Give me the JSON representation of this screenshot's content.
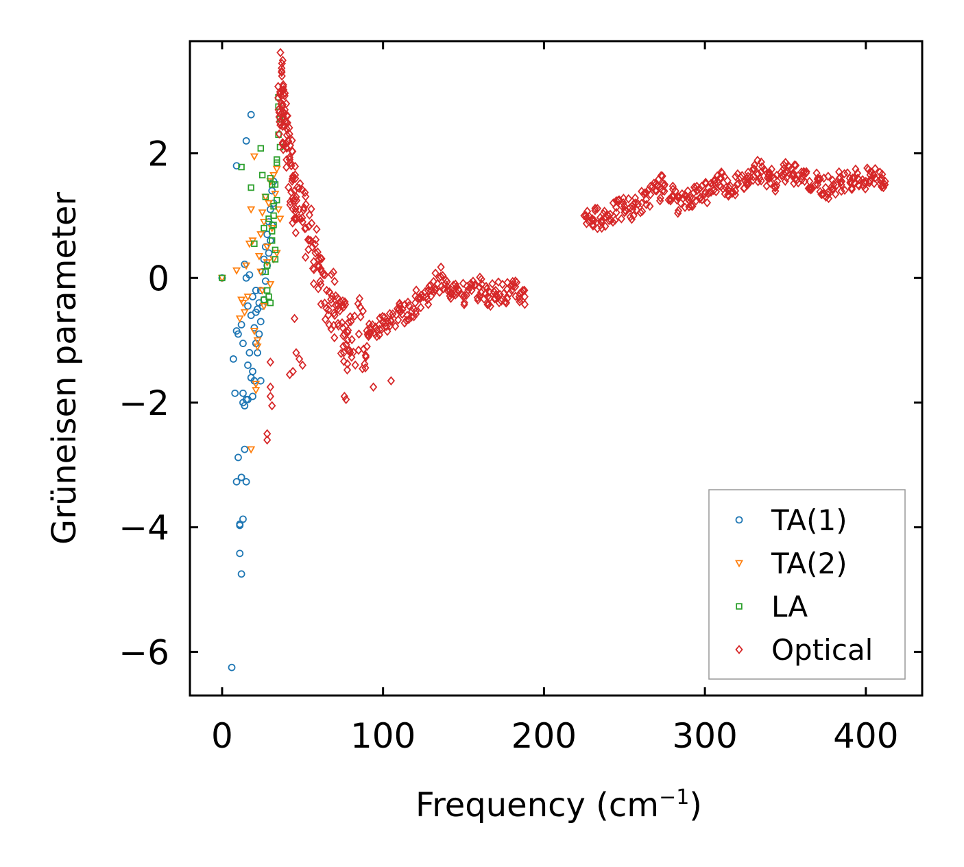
{
  "chart_data": {
    "type": "scatter",
    "title": "",
    "xlabel": "Frequency (cm",
    "xlabel_sup": "−1",
    "xlabel_tail": ")",
    "ylabel": "Grüneisen parameter",
    "xlim": [
      -20,
      435
    ],
    "ylim": [
      -6.7,
      3.8
    ],
    "xticks": [
      0,
      100,
      200,
      300,
      400
    ],
    "xtick_labels": [
      "0",
      "100",
      "200",
      "300",
      "400"
    ],
    "yticks": [
      -6,
      -4,
      -2,
      0,
      2
    ],
    "ytick_labels": [
      "−6",
      "−4",
      "−2",
      "0",
      "2"
    ],
    "grid": false,
    "legend_position": "lower-right",
    "series": [
      {
        "name": "TA(1)",
        "marker": "circle",
        "color": "#1f77b4",
        "x": [
          0,
          6,
          7,
          8,
          9,
          10,
          11,
          11,
          12,
          12,
          13,
          13,
          14,
          14,
          15,
          15,
          16,
          16,
          17,
          17,
          18,
          18,
          19,
          19,
          20,
          20,
          21,
          21,
          22,
          22,
          23,
          23,
          24,
          24,
          25,
          25,
          26,
          26,
          27,
          27,
          28,
          28,
          29,
          29,
          30,
          30,
          31,
          31,
          32,
          32,
          18,
          15,
          9,
          12,
          13,
          10,
          11,
          14,
          15,
          9,
          12,
          13,
          16,
          19,
          21,
          24
        ],
        "y": [
          0,
          -6.25,
          -1.3,
          -1.85,
          -0.85,
          -2.88,
          -3.97,
          -4.42,
          -4.75,
          -3.2,
          -3.87,
          -1.05,
          -2.05,
          0.22,
          -1.95,
          0.0,
          -1.4,
          -0.45,
          -1.2,
          0.05,
          -1.6,
          -0.6,
          -1.9,
          -0.3,
          -1.65,
          -0.8,
          -1.05,
          -0.2,
          -1.2,
          -0.5,
          -0.4,
          -0.9,
          -0.7,
          -0.2,
          -0.45,
          0.1,
          -0.35,
          0.3,
          -0.05,
          0.5,
          0.2,
          0.7,
          0.4,
          0.9,
          0.6,
          1.1,
          0.85,
          1.4,
          1.2,
          1.55,
          2.62,
          2.2,
          1.8,
          -0.75,
          -1.85,
          -0.9,
          -3.95,
          -2.75,
          -3.27,
          -3.27,
          -3.2,
          -2.0,
          -1.95,
          -1.5,
          -0.55,
          -1.65
        ]
      },
      {
        "name": "TA(2)",
        "marker": "triangle-down",
        "color": "#ff7f0e",
        "x": [
          0,
          9,
          11,
          12,
          13,
          14,
          15,
          16,
          17,
          18,
          19,
          20,
          21,
          22,
          23,
          24,
          25,
          26,
          27,
          28,
          29,
          30,
          31,
          32,
          33,
          34,
          35,
          36,
          20,
          22,
          18,
          24,
          26,
          28,
          30,
          32,
          34,
          21,
          25
        ],
        "y": [
          0,
          0.12,
          -0.65,
          -0.35,
          -0.4,
          -0.55,
          0.2,
          -0.3,
          0.55,
          1.1,
          0.6,
          -0.85,
          -1.7,
          -1.1,
          0.35,
          0.7,
          -0.2,
          0.9,
          1.3,
          0.5,
          1.2,
          1.55,
          0.8,
          1.65,
          1.35,
          1.75,
          1.1,
          0.95,
          1.95,
          -1.0,
          -2.75,
          0.1,
          -0.45,
          0.25,
          -0.1,
          0.3,
          0.4,
          -1.8,
          1.05
        ]
      },
      {
        "name": "LA",
        "marker": "square",
        "color": "#2ca02c",
        "x": [
          0,
          12,
          18,
          20,
          24,
          25,
          26,
          27,
          28,
          29,
          30,
          31,
          32,
          33,
          34,
          35,
          36,
          36,
          35,
          34,
          33,
          32,
          31,
          30,
          29,
          28,
          27,
          26,
          35,
          34,
          33,
          32,
          31
        ],
        "y": [
          0,
          1.78,
          1.45,
          0.55,
          2.08,
          1.65,
          0.8,
          1.3,
          0.2,
          0.95,
          1.6,
          0.6,
          1.15,
          0.45,
          1.9,
          2.9,
          2.1,
          2.55,
          2.3,
          1.85,
          1.5,
          1.0,
          0.75,
          -0.4,
          -0.3,
          -0.2,
          0.1,
          -0.35,
          2.75,
          1.25,
          0.3,
          0.85,
          1.5
        ]
      },
      {
        "name": "Optical",
        "marker": "diamond",
        "color": "#d62728",
        "x": [
          37,
          38,
          36,
          39,
          40,
          35,
          41,
          42,
          43,
          44,
          45,
          46,
          48,
          50,
          52,
          55,
          58,
          60,
          62,
          65,
          68,
          70,
          72,
          75,
          76,
          78,
          80,
          85,
          90,
          92,
          95,
          100,
          105,
          110,
          115,
          120,
          125,
          130,
          135,
          140,
          145,
          150,
          155,
          160,
          165,
          170,
          175,
          180,
          185,
          188,
          225,
          230,
          235,
          240,
          245,
          250,
          255,
          270,
          275,
          280,
          285,
          290,
          295,
          300,
          305,
          310,
          315,
          320,
          325,
          330,
          335,
          340,
          345,
          350,
          355,
          360,
          365,
          370,
          375,
          380,
          385,
          390,
          395,
          400,
          405,
          410,
          412,
          30,
          30,
          31,
          28,
          28,
          30,
          42,
          44,
          45,
          46,
          48,
          50,
          76,
          77,
          94,
          105
        ],
        "y": [
          3.3,
          3.1,
          2.95,
          2.7,
          2.4,
          2.7,
          2.2,
          1.9,
          1.8,
          1.6,
          1.4,
          1.3,
          1.1,
          0.9,
          0.8,
          0.6,
          0.4,
          0.3,
          0.1,
          -0.2,
          -0.4,
          -0.6,
          -0.5,
          -0.8,
          -0.9,
          -1.0,
          -0.7,
          -0.9,
          -1.1,
          -0.8,
          -0.9,
          -0.7,
          -0.7,
          -0.5,
          -0.6,
          -0.4,
          -0.3,
          -0.2,
          0.0,
          -0.2,
          -0.1,
          -0.3,
          -0.2,
          -0.15,
          -0.3,
          -0.2,
          -0.25,
          -0.2,
          -0.25,
          -0.3,
          1.0,
          0.95,
          0.97,
          1.0,
          1.05,
          1.15,
          1.1,
          1.4,
          1.5,
          1.3,
          1.2,
          1.25,
          1.4,
          1.35,
          1.5,
          1.6,
          1.45,
          1.5,
          1.55,
          1.75,
          1.7,
          1.6,
          1.55,
          1.7,
          1.65,
          1.7,
          1.55,
          1.5,
          1.45,
          1.5,
          1.55,
          1.6,
          1.6,
          1.55,
          1.65,
          1.6,
          1.55,
          -1.35,
          -1.9,
          -2.05,
          -2.5,
          -2.6,
          -1.75,
          -1.55,
          -1.5,
          -0.65,
          -1.2,
          -1.3,
          -1.4,
          -1.9,
          -1.95,
          -1.75,
          -1.65
        ]
      }
    ]
  }
}
